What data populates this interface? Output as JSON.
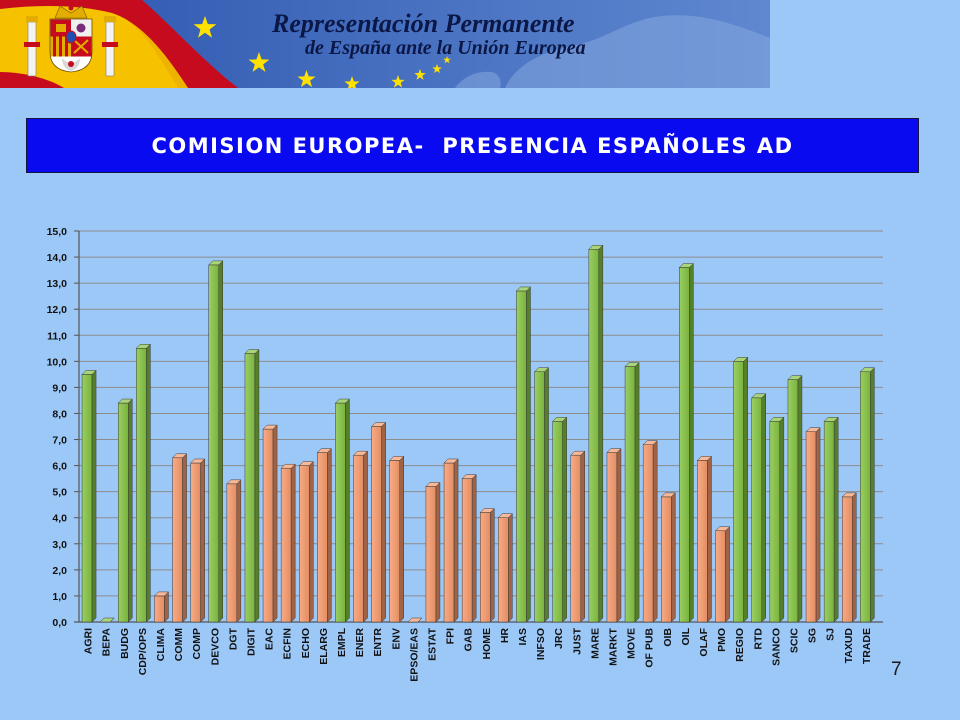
{
  "banner": {
    "title_line1": "Representación Permanente",
    "title_line2": "de España ante la Unión Europea",
    "icons": [
      "spanish-flag-icon",
      "coat-of-arms-icon",
      "eu-star-icon"
    ],
    "colors": {
      "flag_red": "#c60b1e",
      "flag_yellow": "#f6c200",
      "eu_blue": "#3a63b8",
      "star_yellow": "#ffe100",
      "text": "#0b1746"
    }
  },
  "slide": {
    "title": "COMISION EUROPEA-  PRESENCIA ESPAÑOLES AD",
    "page_number": "7",
    "colors": {
      "background": "#9cc8f8",
      "title_box": "#0a0af0",
      "title_text": "#ffffff"
    }
  },
  "chart_data": {
    "type": "bar",
    "style": "3d-column",
    "categories": [
      "AGRI",
      "BEPA",
      "BUDG",
      "CDP/OPS",
      "CLIMA",
      "COMM",
      "COMP",
      "DEVCO",
      "DGT",
      "DIGIT",
      "EAC",
      "ECFIN",
      "ECHO",
      "ELARG",
      "EMPL",
      "ENER",
      "ENTR",
      "ENV",
      "EPSO/EAS",
      "ESTAT",
      "FPI",
      "GAB",
      "HOME",
      "HR",
      "IAS",
      "INFSO",
      "JRC",
      "JUST",
      "MARE",
      "MARKT",
      "MOVE",
      "OF PUB",
      "OIB",
      "OIL",
      "OLAF",
      "PMO",
      "REGIO",
      "RTD",
      "SANCO",
      "SCIC",
      "SG",
      "SJ",
      "TAXUD",
      "TRADE"
    ],
    "values": [
      9.5,
      0.0,
      8.4,
      10.5,
      1.0,
      6.3,
      6.1,
      13.7,
      5.3,
      10.3,
      7.4,
      5.9,
      6.0,
      6.5,
      8.4,
      6.4,
      7.5,
      6.2,
      0.0,
      5.2,
      6.1,
      5.5,
      4.2,
      4.0,
      12.7,
      9.6,
      7.7,
      6.4,
      14.3,
      6.5,
      9.8,
      6.8,
      4.8,
      13.6,
      6.2,
      3.5,
      10.0,
      8.6,
      7.7,
      9.3,
      7.3,
      7.7,
      4.8,
      9.6
    ],
    "bar_colors": [
      "#84c341",
      "#84c341",
      "#84c341",
      "#84c341",
      "#f7996b",
      "#f7996b",
      "#f7996b",
      "#84c341",
      "#f7996b",
      "#84c341",
      "#f7996b",
      "#f7996b",
      "#f7996b",
      "#f7996b",
      "#84c341",
      "#f7996b",
      "#f7996b",
      "#f7996b",
      "#f7996b",
      "#f7996b",
      "#f7996b",
      "#f7996b",
      "#f7996b",
      "#f7996b",
      "#84c341",
      "#84c341",
      "#84c341",
      "#f7996b",
      "#84c341",
      "#f7996b",
      "#84c341",
      "#f7996b",
      "#f7996b",
      "#84c341",
      "#f7996b",
      "#f7996b",
      "#84c341",
      "#84c341",
      "#84c341",
      "#84c341",
      "#f7996b",
      "#84c341",
      "#f7996b",
      "#84c341"
    ],
    "ylim": [
      0,
      15
    ],
    "ytick_labels": [
      "0,0",
      "1,0",
      "2,0",
      "3,0",
      "4,0",
      "5,0",
      "6,0",
      "7,0",
      "8,0",
      "9,0",
      "10,0",
      "11,0",
      "12,0",
      "13,0",
      "14,0",
      "15,0"
    ],
    "grid": true
  }
}
